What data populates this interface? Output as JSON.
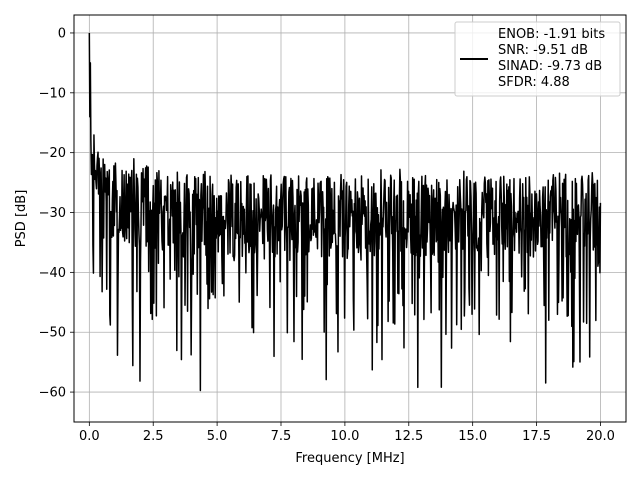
{
  "chart_data": {
    "type": "line",
    "xlabel": "Frequency [MHz]",
    "ylabel": "PSD [dB]",
    "xlim": [
      -0.6,
      21.0
    ],
    "ylim": [
      -65,
      3
    ],
    "xticks": [
      0.0,
      2.5,
      5.0,
      7.5,
      10.0,
      12.5,
      15.0,
      17.5,
      20.0
    ],
    "xtick_labels": [
      "0.0",
      "2.5",
      "5.0",
      "7.5",
      "10.0",
      "12.5",
      "15.0",
      "17.5",
      "20.0"
    ],
    "yticks": [
      0,
      -10,
      -20,
      -30,
      -40,
      -50,
      -60
    ],
    "ytick_labels": [
      "0",
      "−10",
      "−20",
      "−30",
      "−40",
      "−50",
      "−60"
    ],
    "grid": true,
    "legend_position": "top-right",
    "series": [
      {
        "color": "#000000",
        "x_start": 0.0,
        "x_end": 20.0,
        "points": 1000,
        "description": "noisy PSD: peak 0 dB at DC, decaying to noise floor near -30 dB with dips to about -62 dB"
      }
    ],
    "legend_lines": [
      "ENOB: -1.91 bits",
      "SNR: -9.51 dB",
      "SINAD: -9.73 dB",
      "SFDR: 4.88"
    ]
  }
}
